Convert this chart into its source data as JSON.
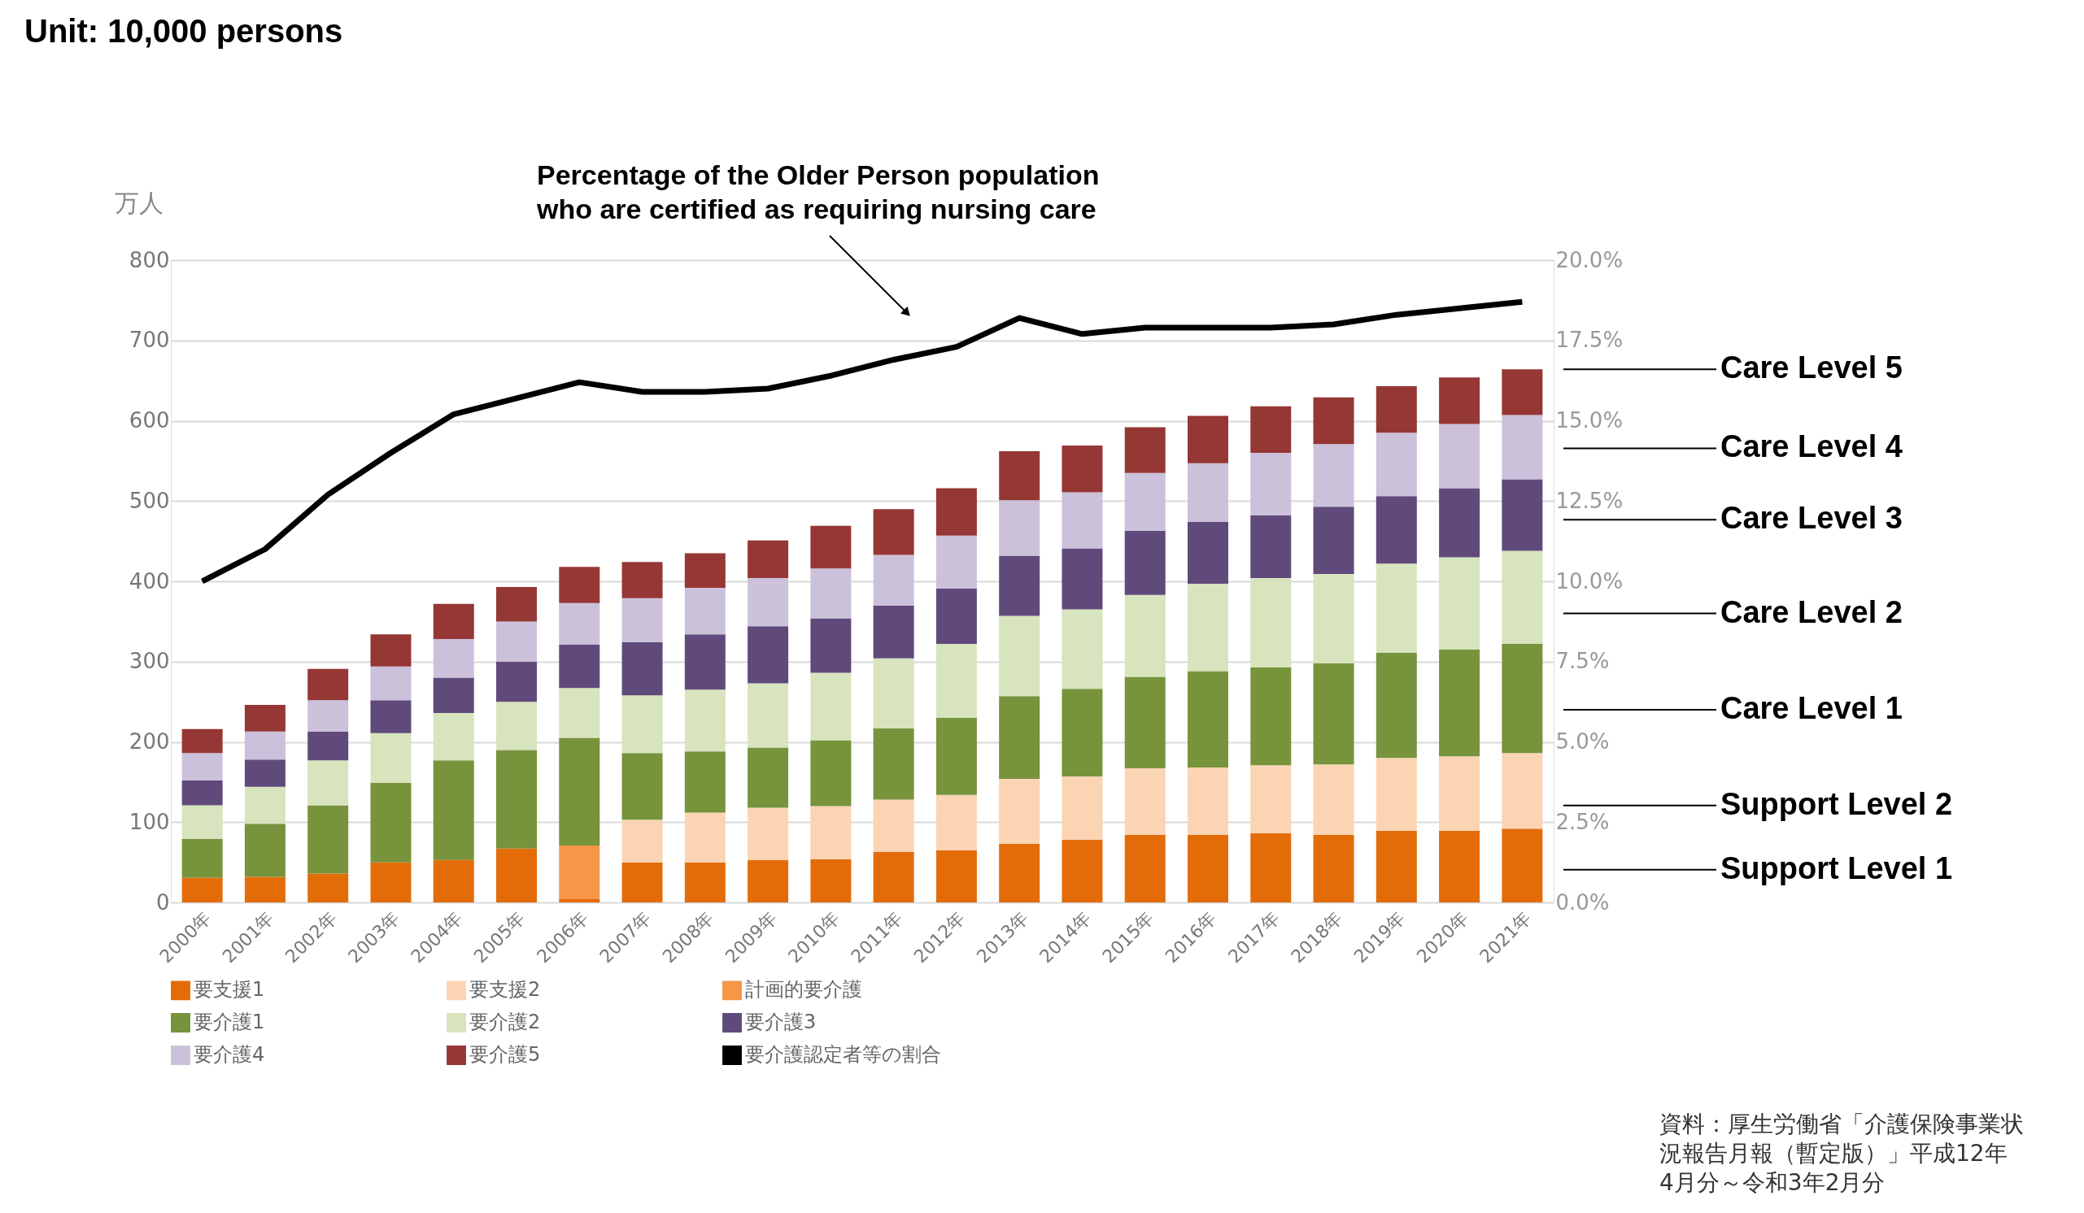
{
  "chart_data": {
    "type": "bar",
    "stacked": true,
    "title": "Unit: 10,000 persons",
    "ylabel": "万人",
    "categories": [
      "2000年",
      "2001年",
      "2002年",
      "2003年",
      "2004年",
      "2005年",
      "2006年",
      "2007年",
      "2008年",
      "2009年",
      "2010年",
      "2011年",
      "2012年",
      "2013年",
      "2014年",
      "2015年",
      "2016年",
      "2017年",
      "2018年",
      "2019年",
      "2020年",
      "2021年"
    ],
    "series": [
      {
        "name": "要支援1",
        "color": "#e36c09",
        "values": [
          31,
          32,
          36,
          50,
          53,
          67,
          4,
          50,
          50,
          53,
          54,
          63,
          65,
          73,
          78,
          84,
          84,
          86,
          84,
          89,
          89,
          92
        ]
      },
      {
        "name": "要支援2",
        "color": "#fbd4b4",
        "values": [
          null,
          null,
          null,
          null,
          null,
          null,
          null,
          53,
          62,
          65,
          66,
          65,
          69,
          81,
          79,
          83,
          84,
          85,
          88,
          91,
          93,
          94
        ]
      },
      {
        "name": "計画的要介護",
        "color": "#f79646",
        "values": [
          null,
          null,
          null,
          null,
          null,
          null,
          67,
          null,
          null,
          null,
          null,
          null,
          null,
          null,
          null,
          null,
          null,
          null,
          null,
          null,
          null,
          null
        ]
      },
      {
        "name": "要介護1",
        "color": "#77933c",
        "values": [
          48,
          66,
          85,
          99,
          124,
          123,
          134,
          83,
          76,
          75,
          82,
          89,
          96,
          103,
          109,
          114,
          120,
          122,
          126,
          131,
          133,
          136
        ]
      },
      {
        "name": "要介護2",
        "color": "#d7e4bd",
        "values": [
          42,
          46,
          56,
          62,
          59,
          60,
          62,
          72,
          77,
          80,
          84,
          87,
          92,
          100,
          99,
          102,
          109,
          111,
          111,
          111,
          115,
          116
        ]
      },
      {
        "name": "要介護3",
        "color": "#604a7b",
        "values": [
          31,
          34,
          36,
          41,
          44,
          50,
          54,
          66,
          69,
          71,
          68,
          66,
          69,
          75,
          76,
          80,
          77,
          78,
          84,
          84,
          86,
          89
        ]
      },
      {
        "name": "要介護4",
        "color": "#ccc1da",
        "values": [
          34,
          35,
          39,
          42,
          48,
          50,
          52,
          55,
          58,
          60,
          62,
          63,
          66,
          69,
          70,
          72,
          73,
          78,
          78,
          79,
          80,
          80
        ]
      },
      {
        "name": "要介護5",
        "color": "#953735",
        "values": [
          30,
          33,
          39,
          40,
          44,
          43,
          45,
          45,
          43,
          47,
          53,
          57,
          59,
          61,
          58,
          57,
          59,
          58,
          58,
          58,
          58,
          57
        ]
      },
      {
        "name": "要介護認定者等の割合",
        "type": "line",
        "axis": "y2",
        "color": "#000000",
        "values": [
          10.0,
          11.0,
          12.7,
          14.0,
          15.2,
          15.7,
          16.2,
          15.9,
          15.9,
          16.0,
          16.4,
          16.9,
          17.3,
          18.2,
          17.7,
          17.9,
          17.9,
          17.9,
          18.0,
          18.3,
          18.5,
          18.7
        ]
      }
    ],
    "ylim": [
      0,
      800
    ],
    "yticks": [
      0,
      100,
      200,
      300,
      400,
      500,
      600,
      700,
      800
    ],
    "y2lim": [
      0,
      20
    ],
    "y2ticks": [
      {
        "value": 0,
        "label": "0.0%"
      },
      {
        "value": 2.5,
        "label": "2.5%"
      },
      {
        "value": 5,
        "label": "5.0%"
      },
      {
        "value": 7.5,
        "label": "7.5%"
      },
      {
        "value": 10,
        "label": "10.0%"
      },
      {
        "value": 12.5,
        "label": "12.5%"
      },
      {
        "value": 15,
        "label": "15.0%"
      },
      {
        "value": 17.5,
        "label": "17.5%"
      },
      {
        "value": 20,
        "label": "20.0%"
      }
    ],
    "grid": "y",
    "legend": "bottom",
    "line_style": "solid",
    "marker": "none",
    "annotations": [
      "Percentage of the Older Person population\nwho are certified as requiring nursing care",
      "Care Level 5",
      "Care Level 4",
      "Care Level 3",
      "Care Level 2",
      "Care Level 1",
      "Support Level 2",
      "Support Level 1",
      "資料：厚生労働省「介護保険事業状況報告月報（暫定版）」平成12年4月分～令和3年2月分"
    ]
  }
}
